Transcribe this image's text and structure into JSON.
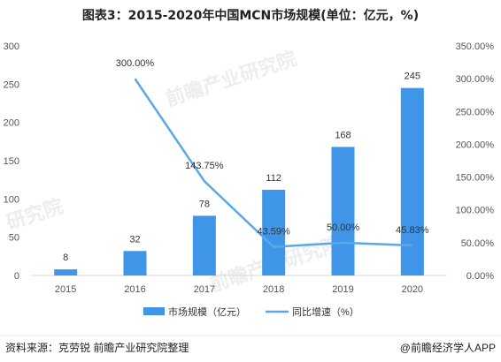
{
  "chart_data": {
    "type": "bar",
    "title": "图表3：2015-2020年中国MCN市场规模(单位：亿元，%)",
    "categories": [
      "2015",
      "2016",
      "2017",
      "2018",
      "2019",
      "2020"
    ],
    "series": [
      {
        "name": "市场规模（亿元）",
        "type": "bar",
        "axis": "left",
        "color": "#3f96e8",
        "values": [
          8,
          32,
          78,
          112,
          168,
          245
        ],
        "labels": [
          "8",
          "32",
          "78",
          "112",
          "168",
          "245"
        ]
      },
      {
        "name": "同比增速（%）",
        "type": "line",
        "axis": "right",
        "color": "#5aa8e8",
        "values": [
          null,
          300.0,
          143.75,
          43.59,
          50.0,
          45.83
        ],
        "labels": [
          "",
          "300.00%",
          "143.75%",
          "43.59%",
          "50.00%",
          "45.83%"
        ]
      }
    ],
    "left_axis": {
      "min": 0,
      "max": 300,
      "ticks": [
        "0",
        "50",
        "100",
        "150",
        "200",
        "250",
        "300"
      ]
    },
    "right_axis": {
      "min": 0,
      "max": 350,
      "ticks": [
        "0.00%",
        "50.00%",
        "100.00%",
        "150.00%",
        "200.00%",
        "250.00%",
        "300.00%",
        "350.00%"
      ]
    },
    "grid": false,
    "legend_position": "bottom"
  },
  "footer": {
    "source": "资料来源：克劳锐 前瞻产业研究院整理",
    "brand": "@前瞻经济学人APP"
  }
}
